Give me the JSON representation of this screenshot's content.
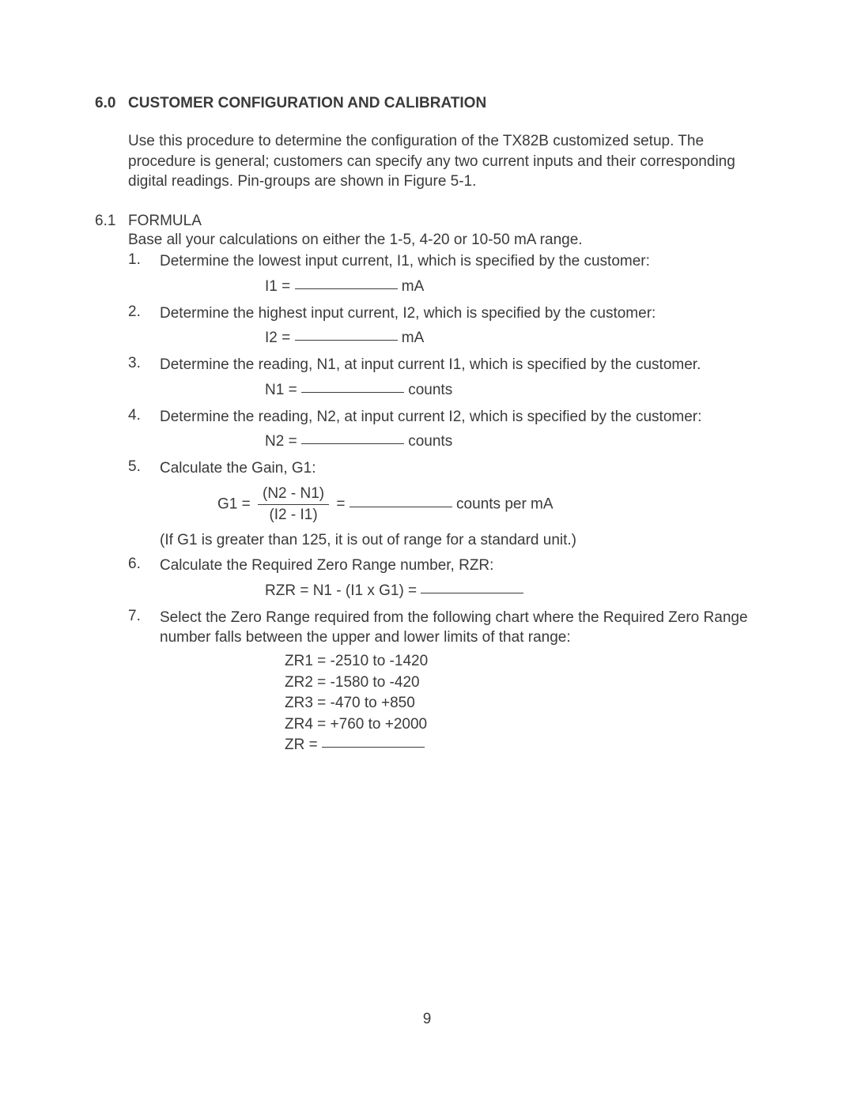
{
  "page": {
    "number": "9",
    "text_color": "#3a3a3a",
    "background_color": "#ffffff",
    "font_size_body": 19,
    "font_family": "Arial"
  },
  "section": {
    "number": "6.0",
    "title": "CUSTOMER CONFIGURATION AND CALIBRATION",
    "intro": "Use this procedure to determine the configuration of the TX82B customized setup. The procedure is general; customers can specify any two current inputs and their corresponding digital readings. Pin-groups are shown in Figure 5-1."
  },
  "subsection": {
    "number": "6.1",
    "title": "FORMULA",
    "intro": "Base all your calculations on either the 1-5, 4-20 or 10-50 mA range."
  },
  "steps": {
    "s1": {
      "num": "1.",
      "text": "Determine the lowest input current, I1, which is specified by the customer:",
      "formula_prefix": "I1 = ",
      "formula_suffix": " mA"
    },
    "s2": {
      "num": "2.",
      "text": "Determine the highest input current, I2, which is specified by the customer:",
      "formula_prefix": "I2 = ",
      "formula_suffix": " mA"
    },
    "s3": {
      "num": "3.",
      "text": "Determine the reading, N1, at input current I1, which is specified by the customer.",
      "formula_prefix": "N1 = ",
      "formula_suffix": " counts"
    },
    "s4": {
      "num": "4.",
      "text": "Determine the reading, N2, at input current I2, which is specified by the customer:",
      "formula_prefix": "N2 = ",
      "formula_suffix": " counts"
    },
    "s5": {
      "num": "5.",
      "text": "Calculate the Gain, G1:",
      "g1_prefix": "G1 = ",
      "frac_num": "(N2 - N1)",
      "frac_den": "(I2 - I1)",
      "g1_mid": " = ",
      "g1_suffix": " counts per mA",
      "note": "(If G1 is greater than 125, it is out of range for a standard unit.)"
    },
    "s6": {
      "num": "6.",
      "text": "Calculate the Required Zero Range number, RZR:",
      "formula_prefix": "RZR = N1 - (I1 x G1) = "
    },
    "s7": {
      "num": "7.",
      "text": "Select the Zero Range required from the following chart where the Required Zero Range number falls between the upper and lower limits of that range:"
    }
  },
  "zr": {
    "zr1": "ZR1 = -2510 to -1420",
    "zr2": "ZR2 = -1580 to -420",
    "zr3": "ZR3 = -470 to +850",
    "zr4": "ZR4 = +760 to +2000",
    "zr_eq": "ZR = "
  }
}
